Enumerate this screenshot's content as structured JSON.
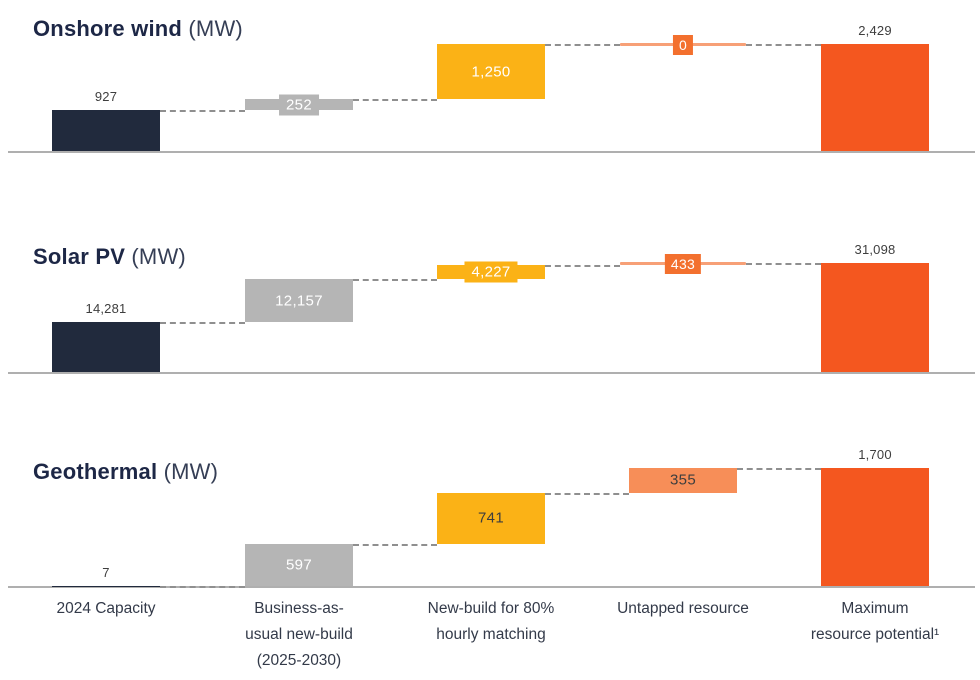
{
  "palette": {
    "start": "#212A3D",
    "bau": "#B5B5B5",
    "newbuild": "#FBB216",
    "untapped": "#F78E58",
    "untapped_line": "#F7A077",
    "badge": "#F3702E",
    "total": "#F4571F",
    "connector": "#8F8F8F",
    "baseline": "#AFAFAF",
    "label_dark": "#3E3E3E",
    "label_white": "#FFFFFF",
    "title": "#1D2746"
  },
  "x_axis": {
    "labels": [
      [
        "2024 Capacity"
      ],
      [
        "Business-as-",
        "usual new-build",
        "(2025-2030)"
      ],
      [
        "New-build for 80%",
        "hourly matching"
      ],
      [
        "Untapped resource"
      ],
      [
        "Maximum",
        "resource potential¹"
      ]
    ]
  },
  "chart_data": [
    {
      "type": "bar",
      "subtype": "waterfall",
      "title": "Onshore wind",
      "unit": "(MW)",
      "ylim": [
        0,
        2429
      ],
      "grid": false,
      "categories": [
        "2024 Capacity",
        "Business-as-usual new-build (2025-2030)",
        "New-build for 80% hourly matching",
        "Untapped resource",
        "Maximum resource potential¹"
      ],
      "steps": [
        {
          "label": "927",
          "value": 927,
          "role": "start",
          "render": "bar",
          "label_pos": "above"
        },
        {
          "label": "252",
          "value": 252,
          "role": "bau",
          "render": "bar",
          "label_pos": "inside",
          "label_color": "white"
        },
        {
          "label": "1,250",
          "value": 1250,
          "role": "newbuild",
          "render": "bar",
          "label_pos": "inside",
          "label_color": "white"
        },
        {
          "label": "0",
          "value": 0,
          "role": "untapped",
          "render": "line",
          "label_pos": "badge"
        },
        {
          "label": "2,429",
          "value": 2429,
          "role": "total",
          "render": "bar",
          "label_pos": "above",
          "is_total": true
        }
      ]
    },
    {
      "type": "bar",
      "subtype": "waterfall",
      "title": "Solar PV",
      "unit": "(MW)",
      "ylim": [
        0,
        31098
      ],
      "grid": false,
      "categories": [
        "2024 Capacity",
        "Business-as-usual new-build (2025-2030)",
        "New-build for 80% hourly matching",
        "Untapped resource",
        "Maximum resource potential¹"
      ],
      "steps": [
        {
          "label": "14,281",
          "value": 14281,
          "role": "start",
          "render": "bar",
          "label_pos": "above"
        },
        {
          "label": "12,157",
          "value": 12157,
          "role": "bau",
          "render": "bar",
          "label_pos": "inside",
          "label_color": "white"
        },
        {
          "label": "4,227",
          "value": 4227,
          "role": "newbuild",
          "render": "bar",
          "label_pos": "inside",
          "label_color": "white"
        },
        {
          "label": "433",
          "value": 433,
          "role": "untapped",
          "render": "line",
          "label_pos": "badge"
        },
        {
          "label": "31,098",
          "value": 31098,
          "role": "total",
          "render": "bar",
          "label_pos": "above",
          "is_total": true
        }
      ]
    },
    {
      "type": "bar",
      "subtype": "waterfall",
      "title": "Geothermal",
      "unit": "(MW)",
      "ylim": [
        0,
        1700
      ],
      "grid": false,
      "categories": [
        "2024 Capacity",
        "Business-as-usual new-build (2025-2030)",
        "New-build for 80% hourly matching",
        "Untapped resource",
        "Maximum resource potential¹"
      ],
      "steps": [
        {
          "label": "7",
          "value": 7,
          "role": "start",
          "render": "bar",
          "label_pos": "above"
        },
        {
          "label": "597",
          "value": 597,
          "role": "bau",
          "render": "bar",
          "label_pos": "inside",
          "label_color": "white"
        },
        {
          "label": "741",
          "value": 741,
          "role": "newbuild",
          "render": "bar",
          "label_pos": "inside",
          "label_color": "dark"
        },
        {
          "label": "355",
          "value": 355,
          "role": "untapped",
          "render": "bar",
          "label_pos": "inside",
          "label_color": "dark"
        },
        {
          "label": "1,700",
          "value": 1700,
          "role": "total",
          "render": "bar",
          "label_pos": "above",
          "is_total": true
        }
      ]
    }
  ]
}
